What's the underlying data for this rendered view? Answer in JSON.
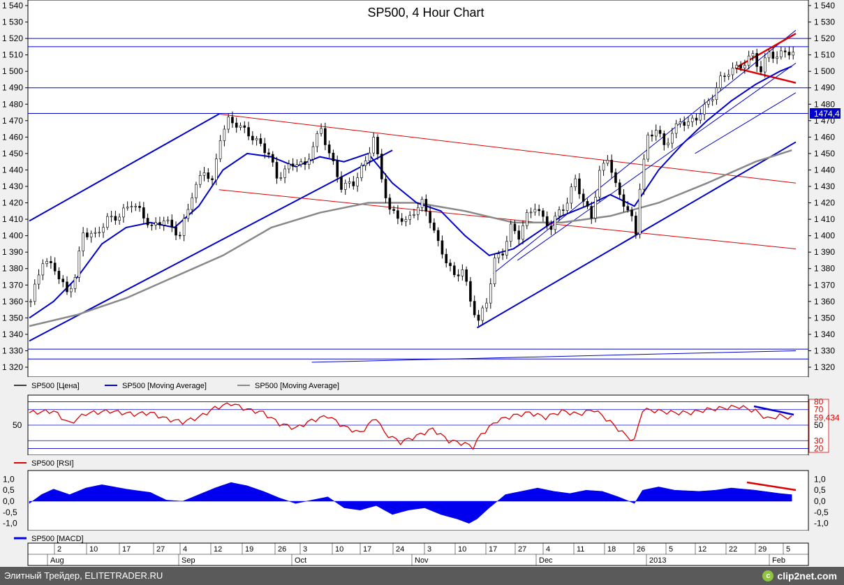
{
  "chart_data": [
    {
      "type": "candlestick",
      "title": "SP500, 4 Hour Chart",
      "ylim": [
        1320,
        1540
      ],
      "y_ticks": [
        "1 320",
        "1 330",
        "1 340",
        "1 350",
        "1 360",
        "1 370",
        "1 380",
        "1 390",
        "1 400",
        "1 410",
        "1 420",
        "1 430",
        "1 440",
        "1 450",
        "1 460",
        "1 470",
        "1 480",
        "1 490",
        "1 500",
        "1 510",
        "1 520",
        "1 530",
        "1 540"
      ],
      "last_price_label": "1474,4",
      "last_price": 1474.4,
      "legend": [
        "SP500 [Цена]",
        "SP500 [Moving Average]",
        "SP500 [Moving Average]"
      ],
      "horizontal_levels": [
        1520,
        1515,
        1490,
        1474.4,
        1331,
        1325
      ],
      "close_path": [
        [
          0,
          1360
        ],
        [
          3,
          1385
        ],
        [
          6,
          1380
        ],
        [
          9,
          1365
        ],
        [
          11,
          1375
        ],
        [
          13,
          1402
        ],
        [
          16,
          1400
        ],
        [
          19,
          1410
        ],
        [
          22,
          1412
        ],
        [
          25,
          1420
        ],
        [
          27,
          1415
        ],
        [
          30,
          1405
        ],
        [
          33,
          1410
        ],
        [
          35,
          1405
        ],
        [
          37,
          1400
        ],
        [
          40,
          1425
        ],
        [
          43,
          1440
        ],
        [
          45,
          1432
        ],
        [
          47,
          1460
        ],
        [
          49,
          1470
        ],
        [
          51,
          1468
        ],
        [
          54,
          1462
        ],
        [
          57,
          1455
        ],
        [
          59,
          1450
        ],
        [
          61,
          1435
        ],
        [
          63,
          1440
        ],
        [
          66,
          1445
        ],
        [
          68,
          1442
        ],
        [
          70,
          1455
        ],
        [
          72,
          1465
        ],
        [
          74,
          1450
        ],
        [
          77,
          1430
        ],
        [
          80,
          1432
        ],
        [
          83,
          1445
        ],
        [
          85,
          1460
        ],
        [
          87,
          1435
        ],
        [
          89,
          1415
        ],
        [
          91,
          1412
        ],
        [
          93,
          1408
        ],
        [
          95,
          1415
        ],
        [
          97,
          1420
        ],
        [
          99,
          1410
        ],
        [
          101,
          1395
        ],
        [
          103,
          1385
        ],
        [
          105,
          1375
        ],
        [
          107,
          1380
        ],
        [
          109,
          1360
        ],
        [
          111,
          1348
        ],
        [
          113,
          1360
        ],
        [
          115,
          1385
        ],
        [
          117,
          1390
        ],
        [
          119,
          1405
        ],
        [
          121,
          1400
        ],
        [
          123,
          1412
        ],
        [
          125,
          1418
        ],
        [
          127,
          1410
        ],
        [
          129,
          1405
        ],
        [
          131,
          1415
        ],
        [
          133,
          1420
        ],
        [
          135,
          1435
        ],
        [
          137,
          1420
        ],
        [
          139,
          1412
        ],
        [
          141,
          1438
        ],
        [
          143,
          1448
        ],
        [
          145,
          1430
        ],
        [
          147,
          1420
        ],
        [
          149,
          1410
        ],
        [
          150,
          1402
        ],
        [
          151,
          1430
        ],
        [
          153,
          1460
        ],
        [
          155,
          1465
        ],
        [
          157,
          1455
        ],
        [
          159,
          1462
        ],
        [
          161,
          1470
        ],
        [
          163,
          1468
        ],
        [
          165,
          1472
        ],
        [
          167,
          1478
        ],
        [
          169,
          1485
        ],
        [
          171,
          1495
        ],
        [
          173,
          1500
        ],
        [
          175,
          1502
        ],
        [
          177,
          1505
        ],
        [
          179,
          1510
        ],
        [
          181,
          1500
        ],
        [
          183,
          1512
        ],
        [
          185,
          1508
        ],
        [
          187,
          1513
        ],
        [
          189,
          1510
        ]
      ],
      "ma_fast_path": [
        [
          0,
          1350
        ],
        [
          6,
          1360
        ],
        [
          12,
          1375
        ],
        [
          18,
          1395
        ],
        [
          24,
          1405
        ],
        [
          30,
          1408
        ],
        [
          36,
          1405
        ],
        [
          42,
          1418
        ],
        [
          48,
          1440
        ],
        [
          54,
          1450
        ],
        [
          60,
          1448
        ],
        [
          66,
          1442
        ],
        [
          72,
          1448
        ],
        [
          78,
          1445
        ],
        [
          84,
          1450
        ],
        [
          90,
          1432
        ],
        [
          96,
          1420
        ],
        [
          102,
          1415
        ],
        [
          108,
          1400
        ],
        [
          114,
          1388
        ],
        [
          120,
          1392
        ],
        [
          126,
          1402
        ],
        [
          132,
          1412
        ],
        [
          138,
          1418
        ],
        [
          144,
          1425
        ],
        [
          150,
          1418
        ],
        [
          156,
          1440
        ],
        [
          162,
          1456
        ],
        [
          168,
          1470
        ],
        [
          174,
          1482
        ],
        [
          180,
          1492
        ],
        [
          186,
          1500
        ],
        [
          189,
          1503
        ]
      ],
      "ma_slow_path": [
        [
          0,
          1345
        ],
        [
          12,
          1352
        ],
        [
          24,
          1362
        ],
        [
          36,
          1375
        ],
        [
          48,
          1388
        ],
        [
          60,
          1405
        ],
        [
          72,
          1414
        ],
        [
          84,
          1420
        ],
        [
          96,
          1420
        ],
        [
          108,
          1415
        ],
        [
          120,
          1408
        ],
        [
          132,
          1408
        ],
        [
          144,
          1412
        ],
        [
          156,
          1420
        ],
        [
          168,
          1432
        ],
        [
          180,
          1445
        ],
        [
          189,
          1452
        ]
      ]
    },
    {
      "type": "line",
      "name": "SP500 [RSI]",
      "ylim": [
        15,
        85
      ],
      "y_ticks_left": [
        "50"
      ],
      "y_ticks_right": [
        "80",
        "70",
        "50",
        "30",
        "20"
      ],
      "last_value_label": "59,434",
      "last_value": 59.434,
      "levels": [
        80,
        70,
        50,
        30,
        20
      ],
      "path": [
        [
          0,
          66
        ],
        [
          6,
          68
        ],
        [
          10,
          52
        ],
        [
          14,
          65
        ],
        [
          20,
          68
        ],
        [
          26,
          64
        ],
        [
          30,
          66
        ],
        [
          34,
          58
        ],
        [
          38,
          54
        ],
        [
          42,
          60
        ],
        [
          46,
          72
        ],
        [
          50,
          78
        ],
        [
          54,
          70
        ],
        [
          58,
          66
        ],
        [
          62,
          52
        ],
        [
          66,
          46
        ],
        [
          70,
          56
        ],
        [
          74,
          62
        ],
        [
          78,
          48
        ],
        [
          82,
          40
        ],
        [
          86,
          60
        ],
        [
          88,
          40
        ],
        [
          92,
          28
        ],
        [
          96,
          36
        ],
        [
          100,
          45
        ],
        [
          104,
          30
        ],
        [
          108,
          26
        ],
        [
          110,
          22
        ],
        [
          112,
          38
        ],
        [
          116,
          56
        ],
        [
          120,
          62
        ],
        [
          124,
          66
        ],
        [
          128,
          60
        ],
        [
          132,
          68
        ],
        [
          136,
          64
        ],
        [
          140,
          70
        ],
        [
          144,
          54
        ],
        [
          148,
          36
        ],
        [
          150,
          30
        ],
        [
          152,
          70
        ],
        [
          156,
          68
        ],
        [
          160,
          66
        ],
        [
          164,
          66
        ],
        [
          168,
          70
        ],
        [
          172,
          72
        ],
        [
          176,
          74
        ],
        [
          180,
          68
        ],
        [
          183,
          58
        ],
        [
          186,
          62
        ],
        [
          189,
          59.4
        ]
      ]
    },
    {
      "type": "area",
      "name": "SP500 [MACD]",
      "ylim": [
        -1.2,
        1.2
      ],
      "y_ticks": [
        "1,0",
        "0,5",
        "0,0",
        "-0,5",
        "-1,0"
      ],
      "path": [
        [
          0,
          -0.1
        ],
        [
          3,
          0.3
        ],
        [
          6,
          0.55
        ],
        [
          10,
          0.3
        ],
        [
          14,
          0.6
        ],
        [
          18,
          0.75
        ],
        [
          24,
          0.55
        ],
        [
          30,
          0.4
        ],
        [
          34,
          0.05
        ],
        [
          38,
          0.0
        ],
        [
          42,
          0.3
        ],
        [
          46,
          0.6
        ],
        [
          50,
          0.85
        ],
        [
          54,
          0.7
        ],
        [
          58,
          0.45
        ],
        [
          62,
          0.15
        ],
        [
          66,
          -0.1
        ],
        [
          70,
          0.05
        ],
        [
          74,
          0.2
        ],
        [
          78,
          -0.3
        ],
        [
          82,
          -0.4
        ],
        [
          86,
          -0.2
        ],
        [
          90,
          -0.6
        ],
        [
          94,
          -0.4
        ],
        [
          98,
          -0.3
        ],
        [
          102,
          -0.6
        ],
        [
          106,
          -0.8
        ],
        [
          109,
          -1.0
        ],
        [
          111,
          -0.8
        ],
        [
          114,
          -0.3
        ],
        [
          118,
          0.3
        ],
        [
          122,
          0.45
        ],
        [
          126,
          0.6
        ],
        [
          130,
          0.45
        ],
        [
          134,
          0.35
        ],
        [
          138,
          0.5
        ],
        [
          142,
          0.45
        ],
        [
          146,
          0.2
        ],
        [
          150,
          -0.1
        ],
        [
          152,
          0.5
        ],
        [
          156,
          0.65
        ],
        [
          160,
          0.5
        ],
        [
          166,
          0.45
        ],
        [
          170,
          0.5
        ],
        [
          174,
          0.6
        ],
        [
          180,
          0.5
        ],
        [
          186,
          0.35
        ],
        [
          189,
          0.3
        ]
      ]
    }
  ],
  "x_axis": {
    "days": [
      "2",
      "10",
      "17",
      "27",
      "4",
      "12",
      "19",
      "26",
      "3",
      "10",
      "17",
      "24",
      "3",
      "10",
      "17",
      "27",
      "4",
      "11",
      "18",
      "26",
      "5",
      "12",
      "22",
      "29",
      "5"
    ],
    "months": [
      "Aug",
      "Sep",
      "Oct",
      "Nov",
      "Dec",
      "2013",
      "Feb"
    ]
  },
  "footer": {
    "text": "Элитный Трейдер, ELITETRADER.RU",
    "brand": "clip2net.com",
    "brand_icon": "clip2net-logo-icon"
  },
  "colors": {
    "candles": "#000000",
    "ma_fast": "#0000cc",
    "ma_slow": "#888888",
    "channel": "#0000cc",
    "resistance": "#dd0000",
    "rsi": "#dd0000",
    "macd": "#0000ee"
  }
}
